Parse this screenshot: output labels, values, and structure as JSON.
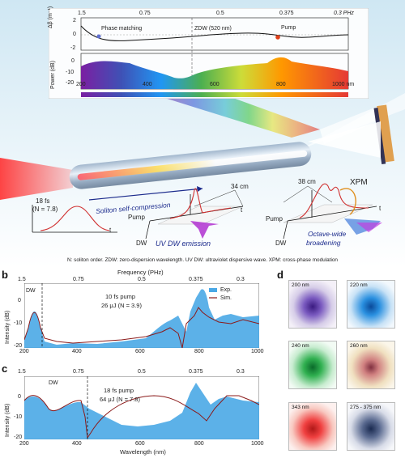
{
  "panel_a": {
    "label": "a",
    "freq_ticks": [
      "1.5",
      "0.75",
      "0.5",
      "0.375",
      "0.3 PHz"
    ],
    "ylabel_db": "Δβ (m⁻¹)",
    "db_ticks": [
      "2",
      "0",
      "-2"
    ],
    "ylabel_power": "Power (dB)",
    "power_ticks": [
      "0",
      "-10",
      "-20"
    ],
    "wl_ticks": [
      "200",
      "400",
      "600",
      "800",
      "1000 nm"
    ],
    "phase_matching": "Phase matching",
    "zdw": "ZDW (520 nm)",
    "pump": "Pump",
    "pulse_in": "18 fs",
    "pulse_n": "(N = 7.8)",
    "t": "t",
    "soliton": "Soliton self-compression",
    "dist1": "34 cm",
    "dist2": "38 cm",
    "xpm": "XPM",
    "pump_axis": "Pump",
    "dw_axis": "DW",
    "uv_emission": "UV DW emission",
    "octave1": "Octave-wide",
    "octave2": "broadening",
    "caption": "N: soliton order. ZDW: zero-dispersion wavelength. UV DW: ultraviolet dispersive wave. XPM: cross-phase modulation"
  },
  "panel_b": {
    "label": "b",
    "top_title": "Frequency (PHz)",
    "freq_ticks": [
      "1.5",
      "0.75",
      "0.5",
      "0.375",
      "0.3"
    ],
    "ylabel": "Intensity (dB)",
    "dw": "DW",
    "pump_line1": "10 fs pump",
    "pump_line2": "26 μJ (N = 3.9)",
    "legend_exp": "Exp.",
    "legend_sim": "Sim.",
    "y_ticks": [
      "0",
      "-10",
      "-20"
    ],
    "x_ticks": [
      "200",
      "400",
      "600",
      "800",
      "1000"
    ]
  },
  "panel_c": {
    "label": "c",
    "freq_ticks": [
      "1.5",
      "0.75",
      "0.5",
      "0.375",
      "0.3"
    ],
    "ylabel": "Intensity (dB)",
    "dw": "DW",
    "pump_line1": "18 fs pump",
    "pump_line2": "64 μJ (N = 7.8)",
    "y_ticks": [
      "0",
      "-10",
      "-20"
    ],
    "x_ticks": [
      "200",
      "400",
      "600",
      "800",
      "1000"
    ],
    "xlabel": "Wavelength (nm)"
  },
  "panel_d": {
    "label": "d",
    "tiles": [
      {
        "label": "200 nm",
        "color": "#5a2ea6"
      },
      {
        "label": "220 nm",
        "color": "#1677c8"
      },
      {
        "label": "240 nm",
        "color": "#1aa04a"
      },
      {
        "label": "260 nm",
        "color": "#c0606a"
      },
      {
        "label": "343 nm",
        "color": "#e03030"
      },
      {
        "label": "275 - 375 nm",
        "color": "#2a3a60"
      }
    ]
  }
}
